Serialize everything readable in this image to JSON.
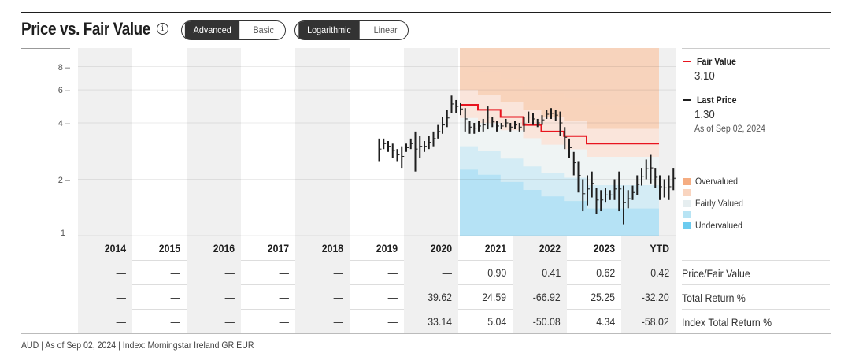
{
  "header": {
    "title": "Price vs. Fair Value",
    "info_icon": "info-circle-icon",
    "view_toggle": {
      "options": [
        "Advanced",
        "Basic"
      ],
      "selected": "Advanced"
    },
    "scale_toggle": {
      "options": [
        "Logarithmic",
        "Linear"
      ],
      "selected": "Logarithmic"
    }
  },
  "legend": {
    "fair_value": {
      "label": "Fair Value",
      "value": "3.10",
      "color": "#e8141e"
    },
    "last_price": {
      "label": "Last Price",
      "value": "1.30",
      "as_of": "As of Sep 02, 2024",
      "color": "#1e1e1e"
    },
    "bands": [
      {
        "label": "Overvalued",
        "color": "#f5ad82"
      },
      {
        "label": "",
        "color": "#f9d5c0"
      },
      {
        "label": "Fairly Valued",
        "color": "#e6eef0"
      },
      {
        "label": "",
        "color": "#b8e4f4"
      },
      {
        "label": "Undervalued",
        "color": "#6ccbef"
      }
    ]
  },
  "table": {
    "years": [
      "2014",
      "2015",
      "2016",
      "2017",
      "2018",
      "2019",
      "2020",
      "2021",
      "2022",
      "2023",
      "YTD"
    ],
    "rows": [
      {
        "label": "Price/Fair Value",
        "values": [
          "—",
          "—",
          "—",
          "—",
          "—",
          "—",
          "—",
          "0.90",
          "0.41",
          "0.62",
          "0.42"
        ]
      },
      {
        "label": "Total Return %",
        "values": [
          "—",
          "—",
          "—",
          "—",
          "—",
          "—",
          "39.62",
          "24.59",
          "-66.92",
          "25.25",
          "-32.20"
        ]
      },
      {
        "label": "Index Total Return %",
        "values": [
          "—",
          "—",
          "—",
          "—",
          "—",
          "—",
          "33.14",
          "5.04",
          "-50.08",
          "4.34",
          "-58.02"
        ]
      }
    ]
  },
  "footer": "AUD | As of Sep 02, 2024 | Index: Morningstar Ireland GR EUR",
  "chart_data": {
    "type": "ohlc_with_valuation_bands",
    "title": "Price vs. Fair Value",
    "yscale": "log",
    "yticks": [
      1,
      2,
      4,
      6,
      8
    ],
    "ylim": [
      1,
      10
    ],
    "x_categories": [
      "2014",
      "2015",
      "2016",
      "2017",
      "2018",
      "2019",
      "2020",
      "2021",
      "2022",
      "2023",
      "YTD"
    ],
    "price_bars_monthly": {
      "start": "2019-07",
      "bars": [
        [
          3.3,
          2.5
        ],
        [
          3.3,
          2.9
        ],
        [
          3.2,
          2.8
        ],
        [
          3.1,
          2.6
        ],
        [
          2.9,
          2.5
        ],
        [
          3.0,
          2.3
        ],
        [
          3.1,
          2.8
        ],
        [
          3.3,
          2.9
        ],
        [
          3.6,
          2.2
        ],
        [
          3.4,
          2.6
        ],
        [
          3.2,
          2.8
        ],
        [
          3.4,
          2.9
        ],
        [
          3.6,
          3.0
        ],
        [
          3.9,
          3.3
        ],
        [
          4.3,
          3.5
        ],
        [
          4.7,
          3.8
        ],
        [
          5.6,
          4.5
        ],
        [
          5.3,
          4.5
        ],
        [
          5.1,
          4.4
        ],
        [
          4.8,
          3.6
        ],
        [
          4.1,
          3.5
        ],
        [
          4.0,
          3.5
        ],
        [
          4.1,
          3.6
        ],
        [
          4.2,
          3.6
        ],
        [
          4.9,
          3.7
        ],
        [
          4.3,
          3.8
        ],
        [
          4.1,
          3.6
        ],
        [
          4.0,
          3.7
        ],
        [
          4.2,
          3.8
        ],
        [
          4.0,
          3.6
        ],
        [
          4.1,
          3.7
        ],
        [
          4.0,
          3.6
        ],
        [
          4.3,
          3.6
        ],
        [
          4.6,
          4.0
        ],
        [
          4.5,
          3.9
        ],
        [
          4.2,
          3.8
        ],
        [
          4.4,
          3.9
        ],
        [
          4.7,
          4.2
        ],
        [
          4.8,
          4.2
        ],
        [
          4.7,
          4.1
        ],
        [
          4.6,
          3.4
        ],
        [
          3.8,
          2.9
        ],
        [
          3.3,
          2.6
        ],
        [
          2.8,
          2.1
        ],
        [
          2.5,
          1.7
        ],
        [
          2.0,
          1.35
        ],
        [
          2.1,
          1.45
        ],
        [
          2.2,
          1.6
        ],
        [
          1.8,
          1.3
        ],
        [
          1.75,
          1.35
        ],
        [
          1.8,
          1.5
        ],
        [
          1.75,
          1.55
        ],
        [
          2.0,
          1.55
        ],
        [
          2.2,
          1.35
        ],
        [
          1.85,
          1.15
        ],
        [
          1.75,
          1.4
        ],
        [
          1.85,
          1.55
        ],
        [
          2.1,
          1.65
        ],
        [
          2.3,
          1.85
        ],
        [
          2.55,
          2.0
        ],
        [
          2.7,
          1.9
        ],
        [
          2.3,
          1.8
        ],
        [
          2.1,
          1.55
        ],
        [
          2.0,
          1.6
        ],
        [
          2.1,
          1.55
        ],
        [
          2.3,
          1.75
        ],
        [
          2.2,
          1.5
        ],
        [
          2.0,
          1.6
        ],
        [
          2.0,
          1.65
        ],
        [
          1.95,
          1.6
        ],
        [
          1.85,
          1.55
        ],
        [
          1.75,
          1.6
        ],
        [
          1.8,
          1.25
        ],
        [
          1.35,
          1.3
        ]
      ]
    },
    "fair_value_steps": [
      {
        "from": "2021-01",
        "value": 5.0
      },
      {
        "from": "2021-05",
        "value": 4.7
      },
      {
        "from": "2021-10",
        "value": 4.3
      },
      {
        "from": "2022-03",
        "value": 3.9
      },
      {
        "from": "2022-07",
        "value": 3.6
      },
      {
        "from": "2022-12",
        "value": 3.4
      },
      {
        "from": "2023-05",
        "value": 3.1
      }
    ],
    "valuation_bands_note": "Stepped shaded regions above and below fair value from 2021 onward: overvalued (dark orange), moderately over (light orange), fair (pale gray-blue), moderately under (light blue), undervalued (blue).",
    "legend_position": "right",
    "grid": true
  }
}
